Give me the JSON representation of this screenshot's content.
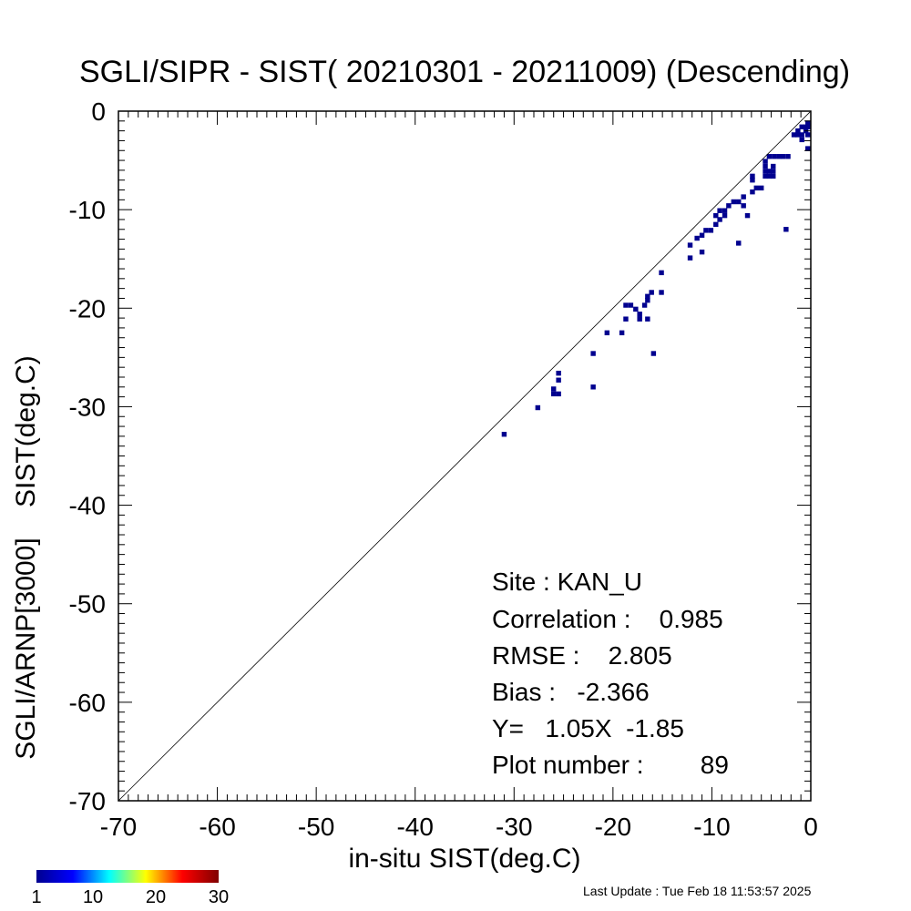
{
  "chart_data": {
    "type": "scatter",
    "title": "SGLI/SIPR - SIST( 20210301 - 20211009) (Descending)",
    "xlabel": "in-situ SIST(deg.C)",
    "ylabel": "SGLI/ARNP[3000]    SIST(deg.C)",
    "xlim": [
      -70,
      0
    ],
    "ylim": [
      -70,
      0
    ],
    "x_ticks": [
      "-70",
      "-60",
      "-50",
      "-40",
      "-30",
      "-20",
      "-10",
      "0"
    ],
    "y_ticks": [
      "-70",
      "-60",
      "-50",
      "-40",
      "-30",
      "-20",
      "-10",
      "0"
    ],
    "grid": false,
    "reference_line": "1:1 diagonal",
    "bin_size": 0.5,
    "points": [
      [
        -31.0,
        -32.8
      ],
      [
        -27.6,
        -30.1
      ],
      [
        -26.0,
        -28.7
      ],
      [
        -25.5,
        -28.7
      ],
      [
        -26.0,
        -28.2
      ],
      [
        -25.5,
        -27.3
      ],
      [
        -25.5,
        -26.6
      ],
      [
        -22.0,
        -28.0
      ],
      [
        -22.0,
        -24.6
      ],
      [
        -15.9,
        -24.6
      ],
      [
        -20.6,
        -22.5
      ],
      [
        -19.1,
        -22.5
      ],
      [
        -18.7,
        -21.1
      ],
      [
        -17.3,
        -21.1
      ],
      [
        -16.5,
        -21.1
      ],
      [
        -18.7,
        -19.7
      ],
      [
        -18.2,
        -19.7
      ],
      [
        -17.7,
        -20.1
      ],
      [
        -17.3,
        -20.6
      ],
      [
        -16.8,
        -19.7
      ],
      [
        -16.5,
        -19.2
      ],
      [
        -16.1,
        -18.4
      ],
      [
        -16.5,
        -18.8
      ],
      [
        -15.1,
        -18.4
      ],
      [
        -15.1,
        -16.4
      ],
      [
        -12.2,
        -14.9
      ],
      [
        -12.2,
        -13.6
      ],
      [
        -11.5,
        -12.9
      ],
      [
        -11.0,
        -12.6
      ],
      [
        -10.6,
        -12.1
      ],
      [
        -10.1,
        -12.1
      ],
      [
        -11.0,
        -14.3
      ],
      [
        -9.6,
        -11.5
      ],
      [
        -9.2,
        -11.0
      ],
      [
        -9.6,
        -10.6
      ],
      [
        -8.7,
        -10.6
      ],
      [
        -9.2,
        -10.1
      ],
      [
        -8.7,
        -10.1
      ],
      [
        -8.3,
        -9.6
      ],
      [
        -7.8,
        -9.2
      ],
      [
        -7.3,
        -9.2
      ],
      [
        -6.8,
        -8.7
      ],
      [
        -6.8,
        -9.6
      ],
      [
        -6.4,
        -10.6
      ],
      [
        -5.9,
        -8.2
      ],
      [
        -5.5,
        -7.8
      ],
      [
        -5.0,
        -7.8
      ],
      [
        -7.3,
        -13.4
      ],
      [
        -5.9,
        -7.0
      ],
      [
        -5.9,
        -6.6
      ],
      [
        -4.6,
        -6.6
      ],
      [
        -4.2,
        -6.6
      ],
      [
        -3.8,
        -6.6
      ],
      [
        -4.6,
        -6.1
      ],
      [
        -4.2,
        -6.1
      ],
      [
        -3.8,
        -6.1
      ],
      [
        -4.6,
        -5.6
      ],
      [
        -3.8,
        -5.6
      ],
      [
        -4.6,
        -5.1
      ],
      [
        -4.2,
        -4.6
      ],
      [
        -3.7,
        -4.6
      ],
      [
        -3.2,
        -4.6
      ],
      [
        -2.8,
        -4.6
      ],
      [
        -2.3,
        -4.6
      ],
      [
        -2.5,
        -12.0
      ],
      [
        -1.7,
        -2.4
      ],
      [
        -1.3,
        -2.4
      ],
      [
        -0.9,
        -2.4
      ],
      [
        -1.3,
        -2.0
      ],
      [
        -0.9,
        -2.9
      ],
      [
        -0.5,
        -2.0
      ],
      [
        -0.9,
        -1.6
      ],
      [
        -0.5,
        -1.6
      ],
      [
        -0.3,
        -1.6
      ],
      [
        -0.3,
        -1.2
      ],
      [
        -0.3,
        -2.4
      ],
      [
        -0.3,
        -3.8
      ]
    ],
    "stats": {
      "site": "Site : KAN_U",
      "correlation": "Correlation :    0.985",
      "rmse": "RMSE :    2.805",
      "bias": "Bias :   -2.366",
      "regression": "Y=   1.05X  -1.85",
      "plot_number": "Plot number :        89"
    },
    "colorbar": {
      "tick_labels": [
        "1",
        "10",
        "20",
        "30"
      ],
      "min": 1,
      "max": 30,
      "colormap": [
        "#00008f",
        "#0000ff",
        "#00ffff",
        "#ffff00",
        "#ff0000",
        "#800000"
      ]
    },
    "marker_color": "#00008f"
  },
  "footer": {
    "last_update": "Last Update : Tue Feb 18 11:53:57 2025"
  }
}
